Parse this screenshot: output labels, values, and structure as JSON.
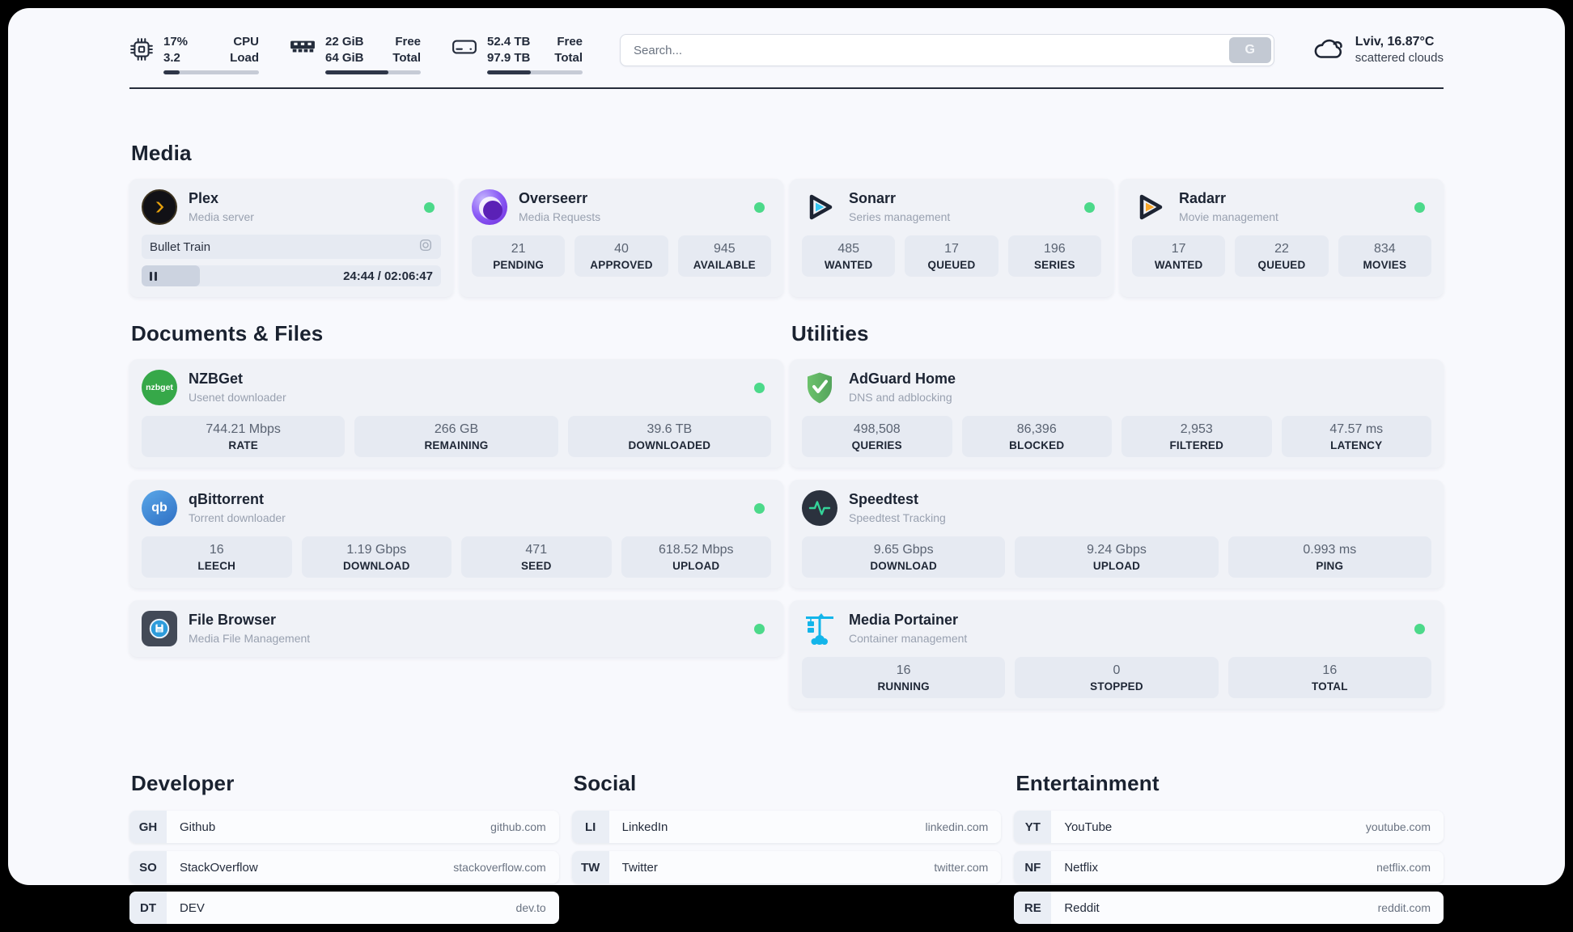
{
  "colors": {
    "status_online": "#4cd98a",
    "accent_fill": "#2e3648"
  },
  "header": {
    "metrics": [
      {
        "name": "cpu",
        "value_top": "17%",
        "value_bottom": "3.2",
        "label_top": "CPU",
        "label_bottom": "Load",
        "progress_pct": 17
      },
      {
        "name": "memory",
        "value_top": "22 GiB",
        "value_bottom": "64 GiB",
        "label_top": "Free",
        "label_bottom": "Total",
        "progress_pct": 66
      },
      {
        "name": "storage",
        "value_top": "52.4 TB",
        "value_bottom": "97.9 TB",
        "label_top": "Free",
        "label_bottom": "Total",
        "progress_pct": 46
      }
    ],
    "search": {
      "placeholder": "Search...",
      "button_label": "G"
    },
    "weather": {
      "location": "Lviv, 16.87°C",
      "condition": "scattered clouds"
    }
  },
  "media": {
    "title": "Media",
    "plex": {
      "title": "Plex",
      "subtitle": "Media server",
      "status_dot": true,
      "now_playing": "Bullet Train",
      "time_display": "24:44 / 02:06:47",
      "progress_pct": 19.5
    },
    "cards": [
      {
        "title": "Overseerr",
        "subtitle": "Media Requests",
        "status_dot": true,
        "stats": [
          {
            "value": "21",
            "label": "PENDING"
          },
          {
            "value": "40",
            "label": "APPROVED"
          },
          {
            "value": "945",
            "label": "AVAILABLE"
          }
        ]
      },
      {
        "title": "Sonarr",
        "subtitle": "Series management",
        "status_dot": true,
        "stats": [
          {
            "value": "485",
            "label": "WANTED"
          },
          {
            "value": "17",
            "label": "QUEUED"
          },
          {
            "value": "196",
            "label": "SERIES"
          }
        ]
      },
      {
        "title": "Radarr",
        "subtitle": "Movie management",
        "status_dot": true,
        "stats": [
          {
            "value": "17",
            "label": "WANTED"
          },
          {
            "value": "22",
            "label": "QUEUED"
          },
          {
            "value": "834",
            "label": "MOVIES"
          }
        ]
      }
    ]
  },
  "documents": {
    "title": "Documents & Files",
    "cards": [
      {
        "title": "NZBGet",
        "subtitle": "Usenet downloader",
        "status_dot": true,
        "icon_text": "nzbget",
        "stats": [
          {
            "value": "744.21 Mbps",
            "label": "RATE"
          },
          {
            "value": "266 GB",
            "label": "REMAINING"
          },
          {
            "value": "39.6 TB",
            "label": "DOWNLOADED"
          }
        ]
      },
      {
        "title": "qBittorrent",
        "subtitle": "Torrent downloader",
        "status_dot": true,
        "icon_text": "qb",
        "stats": [
          {
            "value": "16",
            "label": "LEECH"
          },
          {
            "value": "1.19 Gbps",
            "label": "DOWNLOAD"
          },
          {
            "value": "471",
            "label": "SEED"
          },
          {
            "value": "618.52 Mbps",
            "label": "UPLOAD"
          }
        ]
      },
      {
        "title": "File Browser",
        "subtitle": "Media File Management",
        "status_dot": true,
        "stats": []
      }
    ]
  },
  "utilities": {
    "title": "Utilities",
    "cards": [
      {
        "title": "AdGuard Home",
        "subtitle": "DNS and adblocking",
        "status_dot": false,
        "stats": [
          {
            "value": "498,508",
            "label": "QUERIES"
          },
          {
            "value": "86,396",
            "label": "BLOCKED"
          },
          {
            "value": "2,953",
            "label": "FILTERED"
          },
          {
            "value": "47.57 ms",
            "label": "LATENCY"
          }
        ]
      },
      {
        "title": "Speedtest",
        "subtitle": "Speedtest Tracking",
        "status_dot": false,
        "stats": [
          {
            "value": "9.65 Gbps",
            "label": "DOWNLOAD"
          },
          {
            "value": "9.24 Gbps",
            "label": "UPLOAD"
          },
          {
            "value": "0.993 ms",
            "label": "PING"
          }
        ]
      },
      {
        "title": "Media Portainer",
        "subtitle": "Container management",
        "status_dot": true,
        "stats": [
          {
            "value": "16",
            "label": "RUNNING"
          },
          {
            "value": "0",
            "label": "STOPPED"
          },
          {
            "value": "16",
            "label": "TOTAL"
          }
        ]
      }
    ]
  },
  "bookmarks": [
    {
      "title": "Developer",
      "links": [
        {
          "abbr": "GH",
          "name": "Github",
          "url": "github.com"
        },
        {
          "abbr": "SO",
          "name": "StackOverflow",
          "url": "stackoverflow.com"
        },
        {
          "abbr": "DT",
          "name": "DEV",
          "url": "dev.to"
        }
      ]
    },
    {
      "title": "Social",
      "links": [
        {
          "abbr": "LI",
          "name": "LinkedIn",
          "url": "linkedin.com"
        },
        {
          "abbr": "TW",
          "name": "Twitter",
          "url": "twitter.com"
        }
      ]
    },
    {
      "title": "Entertainment",
      "links": [
        {
          "abbr": "YT",
          "name": "YouTube",
          "url": "youtube.com"
        },
        {
          "abbr": "NF",
          "name": "Netflix",
          "url": "netflix.com"
        },
        {
          "abbr": "RE",
          "name": "Reddit",
          "url": "reddit.com"
        }
      ]
    }
  ]
}
